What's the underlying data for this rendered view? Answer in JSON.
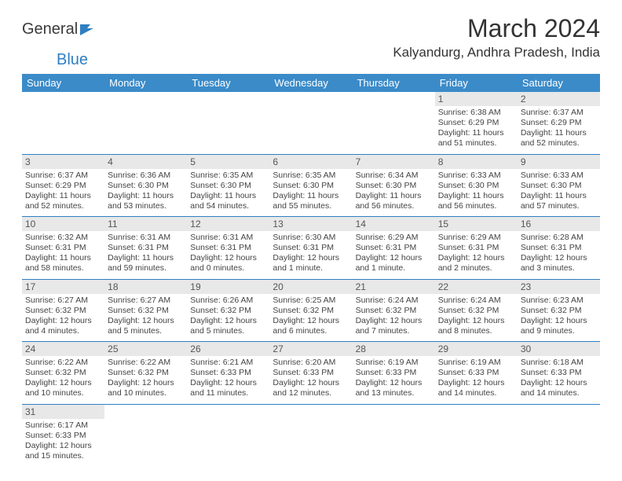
{
  "logo": {
    "text1": "General",
    "text2": "Blue"
  },
  "title": "March 2024",
  "location": "Kalyandurg, Andhra Pradesh, India",
  "colors": {
    "header_bg": "#3b8bc9",
    "divider": "#2f7fc2",
    "daynum_bg": "#e8e8e8"
  },
  "day_headers": [
    "Sunday",
    "Monday",
    "Tuesday",
    "Wednesday",
    "Thursday",
    "Friday",
    "Saturday"
  ],
  "weeks": [
    [
      null,
      null,
      null,
      null,
      null,
      {
        "n": "1",
        "sr": "Sunrise: 6:38 AM",
        "ss": "Sunset: 6:29 PM",
        "dl": "Daylight: 11 hours and 51 minutes."
      },
      {
        "n": "2",
        "sr": "Sunrise: 6:37 AM",
        "ss": "Sunset: 6:29 PM",
        "dl": "Daylight: 11 hours and 52 minutes."
      }
    ],
    [
      {
        "n": "3",
        "sr": "Sunrise: 6:37 AM",
        "ss": "Sunset: 6:29 PM",
        "dl": "Daylight: 11 hours and 52 minutes."
      },
      {
        "n": "4",
        "sr": "Sunrise: 6:36 AM",
        "ss": "Sunset: 6:30 PM",
        "dl": "Daylight: 11 hours and 53 minutes."
      },
      {
        "n": "5",
        "sr": "Sunrise: 6:35 AM",
        "ss": "Sunset: 6:30 PM",
        "dl": "Daylight: 11 hours and 54 minutes."
      },
      {
        "n": "6",
        "sr": "Sunrise: 6:35 AM",
        "ss": "Sunset: 6:30 PM",
        "dl": "Daylight: 11 hours and 55 minutes."
      },
      {
        "n": "7",
        "sr": "Sunrise: 6:34 AM",
        "ss": "Sunset: 6:30 PM",
        "dl": "Daylight: 11 hours and 56 minutes."
      },
      {
        "n": "8",
        "sr": "Sunrise: 6:33 AM",
        "ss": "Sunset: 6:30 PM",
        "dl": "Daylight: 11 hours and 56 minutes."
      },
      {
        "n": "9",
        "sr": "Sunrise: 6:33 AM",
        "ss": "Sunset: 6:30 PM",
        "dl": "Daylight: 11 hours and 57 minutes."
      }
    ],
    [
      {
        "n": "10",
        "sr": "Sunrise: 6:32 AM",
        "ss": "Sunset: 6:31 PM",
        "dl": "Daylight: 11 hours and 58 minutes."
      },
      {
        "n": "11",
        "sr": "Sunrise: 6:31 AM",
        "ss": "Sunset: 6:31 PM",
        "dl": "Daylight: 11 hours and 59 minutes."
      },
      {
        "n": "12",
        "sr": "Sunrise: 6:31 AM",
        "ss": "Sunset: 6:31 PM",
        "dl": "Daylight: 12 hours and 0 minutes."
      },
      {
        "n": "13",
        "sr": "Sunrise: 6:30 AM",
        "ss": "Sunset: 6:31 PM",
        "dl": "Daylight: 12 hours and 1 minute."
      },
      {
        "n": "14",
        "sr": "Sunrise: 6:29 AM",
        "ss": "Sunset: 6:31 PM",
        "dl": "Daylight: 12 hours and 1 minute."
      },
      {
        "n": "15",
        "sr": "Sunrise: 6:29 AM",
        "ss": "Sunset: 6:31 PM",
        "dl": "Daylight: 12 hours and 2 minutes."
      },
      {
        "n": "16",
        "sr": "Sunrise: 6:28 AM",
        "ss": "Sunset: 6:31 PM",
        "dl": "Daylight: 12 hours and 3 minutes."
      }
    ],
    [
      {
        "n": "17",
        "sr": "Sunrise: 6:27 AM",
        "ss": "Sunset: 6:32 PM",
        "dl": "Daylight: 12 hours and 4 minutes."
      },
      {
        "n": "18",
        "sr": "Sunrise: 6:27 AM",
        "ss": "Sunset: 6:32 PM",
        "dl": "Daylight: 12 hours and 5 minutes."
      },
      {
        "n": "19",
        "sr": "Sunrise: 6:26 AM",
        "ss": "Sunset: 6:32 PM",
        "dl": "Daylight: 12 hours and 5 minutes."
      },
      {
        "n": "20",
        "sr": "Sunrise: 6:25 AM",
        "ss": "Sunset: 6:32 PM",
        "dl": "Daylight: 12 hours and 6 minutes."
      },
      {
        "n": "21",
        "sr": "Sunrise: 6:24 AM",
        "ss": "Sunset: 6:32 PM",
        "dl": "Daylight: 12 hours and 7 minutes."
      },
      {
        "n": "22",
        "sr": "Sunrise: 6:24 AM",
        "ss": "Sunset: 6:32 PM",
        "dl": "Daylight: 12 hours and 8 minutes."
      },
      {
        "n": "23",
        "sr": "Sunrise: 6:23 AM",
        "ss": "Sunset: 6:32 PM",
        "dl": "Daylight: 12 hours and 9 minutes."
      }
    ],
    [
      {
        "n": "24",
        "sr": "Sunrise: 6:22 AM",
        "ss": "Sunset: 6:32 PM",
        "dl": "Daylight: 12 hours and 10 minutes."
      },
      {
        "n": "25",
        "sr": "Sunrise: 6:22 AM",
        "ss": "Sunset: 6:32 PM",
        "dl": "Daylight: 12 hours and 10 minutes."
      },
      {
        "n": "26",
        "sr": "Sunrise: 6:21 AM",
        "ss": "Sunset: 6:33 PM",
        "dl": "Daylight: 12 hours and 11 minutes."
      },
      {
        "n": "27",
        "sr": "Sunrise: 6:20 AM",
        "ss": "Sunset: 6:33 PM",
        "dl": "Daylight: 12 hours and 12 minutes."
      },
      {
        "n": "28",
        "sr": "Sunrise: 6:19 AM",
        "ss": "Sunset: 6:33 PM",
        "dl": "Daylight: 12 hours and 13 minutes."
      },
      {
        "n": "29",
        "sr": "Sunrise: 6:19 AM",
        "ss": "Sunset: 6:33 PM",
        "dl": "Daylight: 12 hours and 14 minutes."
      },
      {
        "n": "30",
        "sr": "Sunrise: 6:18 AM",
        "ss": "Sunset: 6:33 PM",
        "dl": "Daylight: 12 hours and 14 minutes."
      }
    ],
    [
      {
        "n": "31",
        "sr": "Sunrise: 6:17 AM",
        "ss": "Sunset: 6:33 PM",
        "dl": "Daylight: 12 hours and 15 minutes."
      },
      null,
      null,
      null,
      null,
      null,
      null
    ]
  ]
}
